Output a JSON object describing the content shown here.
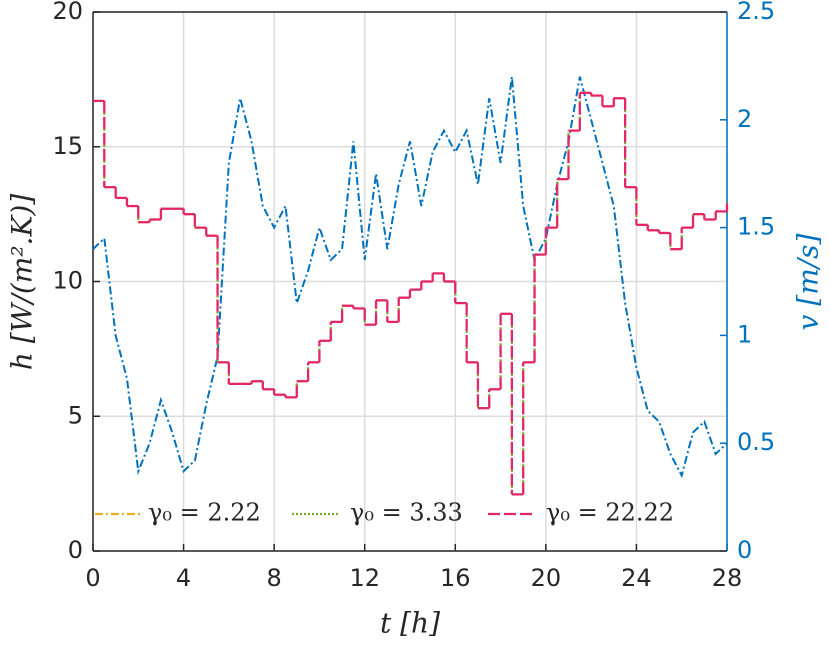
{
  "chart_data": {
    "type": "line",
    "xlabel": "t [h]",
    "ylabel": "h [W/(m².K)]",
    "y2label": "v [m/s]",
    "x": [
      0,
      0.5,
      1,
      1.5,
      2,
      2.5,
      3,
      3.5,
      4,
      4.5,
      5,
      5.5,
      6,
      6.5,
      7,
      7.5,
      8,
      8.5,
      9,
      9.5,
      10,
      10.5,
      11,
      11.5,
      12,
      12.5,
      13,
      13.5,
      14,
      14.5,
      15,
      15.5,
      16,
      16.5,
      17,
      17.5,
      18,
      18.5,
      19,
      19.5,
      20,
      20.5,
      21,
      21.5,
      22,
      22.5,
      23,
      23.5,
      24,
      24.5,
      25,
      25.5,
      26,
      26.5,
      27,
      27.5,
      28
    ],
    "series": [
      {
        "name": "γ₀ = 2.22",
        "color": "#EDB120",
        "dash": "8 3 2 3",
        "step": true,
        "values": [
          16.7,
          13.5,
          13.1,
          12.8,
          12.2,
          12.3,
          12.7,
          12.7,
          12.5,
          12.0,
          11.7,
          7.0,
          6.2,
          6.2,
          6.3,
          6.0,
          5.8,
          5.7,
          6.3,
          7.0,
          7.8,
          8.5,
          9.1,
          9.0,
          8.4,
          9.3,
          8.5,
          9.4,
          9.7,
          10.0,
          10.3,
          10.0,
          9.2,
          7.0,
          5.3,
          6.0,
          8.8,
          2.1,
          7.0,
          11.0,
          12.0,
          13.8,
          15.6,
          17.0,
          16.9,
          16.5,
          16.8,
          13.5,
          12.1,
          11.9,
          11.8,
          11.2,
          12.0,
          12.5,
          12.3,
          12.6,
          12.9
        ]
      },
      {
        "name": "γ₀ = 3.33",
        "color": "#77AC30",
        "dash": "2 2",
        "step": true,
        "values": [
          16.7,
          13.5,
          13.1,
          12.8,
          12.2,
          12.3,
          12.7,
          12.7,
          12.5,
          12.0,
          11.7,
          7.0,
          6.2,
          6.2,
          6.3,
          6.0,
          5.8,
          5.7,
          6.3,
          7.0,
          7.8,
          8.5,
          9.1,
          9.0,
          8.4,
          9.3,
          8.5,
          9.4,
          9.7,
          10.0,
          10.3,
          10.0,
          9.2,
          7.0,
          5.3,
          6.0,
          8.8,
          2.1,
          7.0,
          11.0,
          12.0,
          13.8,
          15.6,
          17.0,
          16.9,
          16.5,
          16.8,
          13.5,
          12.1,
          11.9,
          11.8,
          11.2,
          12.0,
          12.5,
          12.3,
          12.6,
          12.9
        ]
      },
      {
        "name": "γ₀ = 22.22",
        "color": "#E6246E",
        "dash": "12 4",
        "step": true,
        "values": [
          16.7,
          13.5,
          13.1,
          12.8,
          12.2,
          12.3,
          12.7,
          12.7,
          12.5,
          12.0,
          11.7,
          7.0,
          6.2,
          6.2,
          6.3,
          6.0,
          5.8,
          5.7,
          6.3,
          7.0,
          7.8,
          8.5,
          9.1,
          9.0,
          8.4,
          9.3,
          8.5,
          9.4,
          9.7,
          10.0,
          10.3,
          10.0,
          9.2,
          7.0,
          5.3,
          6.0,
          8.8,
          2.1,
          7.0,
          11.0,
          12.0,
          13.8,
          15.6,
          17.0,
          16.9,
          16.5,
          16.8,
          13.5,
          12.1,
          11.9,
          11.8,
          11.2,
          12.0,
          12.5,
          12.3,
          12.6,
          12.9
        ]
      },
      {
        "color": "#0072BD",
        "dash": "8 3 2 3",
        "axis": "y2",
        "values": [
          1.4,
          1.45,
          1.0,
          0.8,
          0.37,
          0.5,
          0.7,
          0.55,
          0.37,
          0.42,
          0.68,
          0.9,
          1.8,
          2.1,
          1.9,
          1.6,
          1.5,
          1.6,
          1.15,
          1.3,
          1.5,
          1.35,
          1.4,
          1.9,
          1.35,
          1.75,
          1.4,
          1.7,
          1.9,
          1.6,
          1.85,
          1.95,
          1.85,
          1.95,
          1.7,
          2.1,
          1.8,
          2.2,
          1.6,
          1.35,
          1.45,
          1.7,
          1.9,
          2.2,
          2.0,
          1.8,
          1.6,
          1.15,
          0.85,
          0.65,
          0.6,
          0.45,
          0.35,
          0.55,
          0.6,
          0.45,
          0.5
        ]
      }
    ],
    "xlim": [
      0,
      28
    ],
    "xticks": [
      0,
      4,
      8,
      12,
      16,
      20,
      24,
      28
    ],
    "ylim": [
      0,
      20
    ],
    "yticks": [
      0,
      5,
      10,
      15,
      20
    ],
    "y2lim": [
      0,
      2.5
    ],
    "y2ticks": [
      0,
      0.5,
      1,
      1.5,
      2,
      2.5
    ],
    "y2color": "#0072BD",
    "grid": true,
    "legend": "south"
  }
}
